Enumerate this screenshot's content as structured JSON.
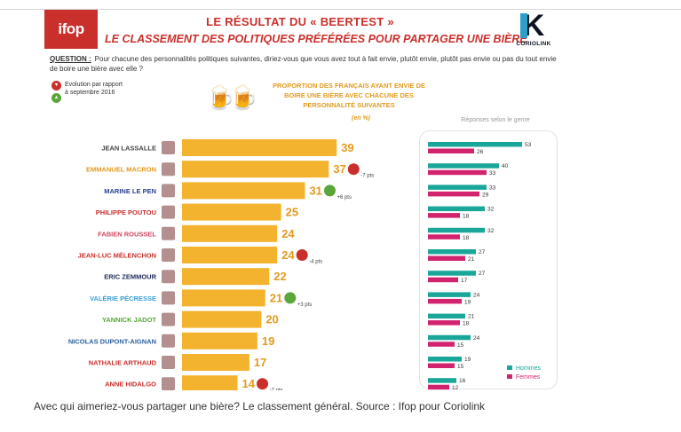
{
  "header": {
    "logo_left": "ifop",
    "title_line1": "LE RÉSULTAT DU « BEERTEST »",
    "title_line2": "LE CLASSEMENT DES POLITIQUES PRÉFÉRÉES POUR PARTAGER UNE BIÈRE",
    "logo_right": "CORIOLINK"
  },
  "question": {
    "label": "QUESTION :",
    "text": "Pour chacune des personnalités politiques suivantes, diriez-vous que vous avez tout à fait envie, plutôt envie, plutôt pas envie ou pas du tout envie de boire une bière avec elle ?"
  },
  "evolution_legend": {
    "label": "Evolution par rapport à septembre 2016"
  },
  "colors": {
    "bar": "#f3b32e",
    "value": "#e39a1e",
    "hommes": "#1aa79a",
    "femmes": "#d2246e",
    "down": "#c9302c",
    "up": "#5aa63a"
  },
  "chart_data": [
    {
      "type": "bar",
      "title": "PROPORTION DES FRANÇAIS AYANT ENVIE DE BOIRE UNE BIÈRE AVEC CHACUNE DES PERSONNALITÉ SUIVANTES",
      "unit": "(en %)",
      "orientation": "horizontal",
      "categories": [
        "JEAN LASSALLE",
        "EMMANUEL MACRON",
        "MARINE LE PEN",
        "PHILIPPE POUTOU",
        "FABIEN ROUSSEL",
        "JEAN-LUC MÉLENCHON",
        "ERIC ZEMMOUR",
        "VALÉRIE PÉCRESSE",
        "YANNICK JADOT",
        "NICOLAS DUPONT-AIGNAN",
        "NATHALIE ARTHAUD",
        "ANNE HIDALGO"
      ],
      "label_colors": [
        "#444444",
        "#e39a1e",
        "#2a3f8f",
        "#c9302c",
        "#d04a60",
        "#c9302c",
        "#1e2a5a",
        "#3aa0d5",
        "#5aa63a",
        "#2a5f9f",
        "#c9302c",
        "#c9302c"
      ],
      "values": [
        39,
        37,
        31,
        25,
        24,
        24,
        22,
        21,
        20,
        19,
        17,
        14
      ],
      "evolution": [
        null,
        {
          "dir": "down",
          "text": "-7 pts"
        },
        {
          "dir": "up",
          "text": "+6 pts"
        },
        null,
        null,
        {
          "dir": "down",
          "text": "-4 pts"
        },
        null,
        {
          "dir": "up",
          "text": "+3 pts"
        },
        null,
        null,
        null,
        {
          "dir": "down",
          "text": "-7 pts"
        }
      ],
      "xlim": [
        0,
        45
      ]
    },
    {
      "type": "bar",
      "title": "Réponses selon le genre",
      "orientation": "horizontal",
      "categories": [
        "JEAN LASSALLE",
        "EMMANUEL MACRON",
        "MARINE LE PEN",
        "PHILIPPE POUTOU",
        "FABIEN ROUSSEL",
        "JEAN-LUC MÉLENCHON",
        "ERIC ZEMMOUR",
        "VALÉRIE PÉCRESSE",
        "YANNICK JADOT",
        "NICOLAS DUPONT-AIGNAN",
        "NATHALIE ARTHAUD",
        "ANNE HIDALGO"
      ],
      "series": [
        {
          "name": "Hommes",
          "values": [
            53,
            40,
            33,
            32,
            32,
            27,
            27,
            24,
            21,
            24,
            19,
            16
          ]
        },
        {
          "name": "Femmes",
          "values": [
            26,
            33,
            29,
            18,
            18,
            21,
            17,
            19,
            18,
            15,
            15,
            12
          ]
        }
      ],
      "legend": "bottom-right",
      "xlim": [
        0,
        60
      ]
    }
  ],
  "caption": "Avec qui aimeriez-vous partager une bière? Le classement général. Source : Ifop pour Coriolink"
}
